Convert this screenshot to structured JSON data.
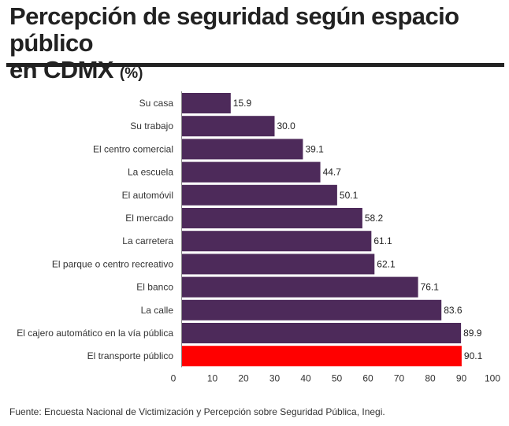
{
  "header": {
    "title_line1": "Percepción de seguridad según espacio público",
    "title_line2": "en CDMX",
    "title_unit": "(%)"
  },
  "footer": {
    "source": "Fuente: Encuesta Nacional de Victimización y Percepción sobre Seguridad Pública, Inegi."
  },
  "colors": {
    "bar": "#4d2a5a",
    "highlight": "#ff0000",
    "axis": "#888888"
  },
  "chart_data": {
    "type": "bar",
    "orientation": "horizontal",
    "title": "Percepción de seguridad según espacio público en CDMX (%)",
    "xlabel": "",
    "ylabel": "",
    "xlim": [
      0,
      100
    ],
    "ticks": [
      0,
      10,
      20,
      30,
      40,
      50,
      60,
      70,
      80,
      90,
      100
    ],
    "grid": false,
    "categories": [
      "Su casa",
      "Su trabajo",
      "El centro comercial",
      "La escuela",
      "El automóvil",
      "El mercado",
      "La carretera",
      "El parque o centro recreativo",
      "El banco",
      "La calle",
      "El cajero automático en la vía pública",
      "El transporte público"
    ],
    "values": [
      15.9,
      30.0,
      39.1,
      44.7,
      50.1,
      58.2,
      61.1,
      62.1,
      76.1,
      83.6,
      89.9,
      90.1
    ],
    "value_labels": [
      "15.9",
      "30.0",
      "39.1",
      "44.7",
      "50.1",
      "58.2",
      "61.1",
      "62.1",
      "76.1",
      "83.6",
      "89.9",
      "90.1"
    ],
    "highlight_category": "El transporte público"
  }
}
